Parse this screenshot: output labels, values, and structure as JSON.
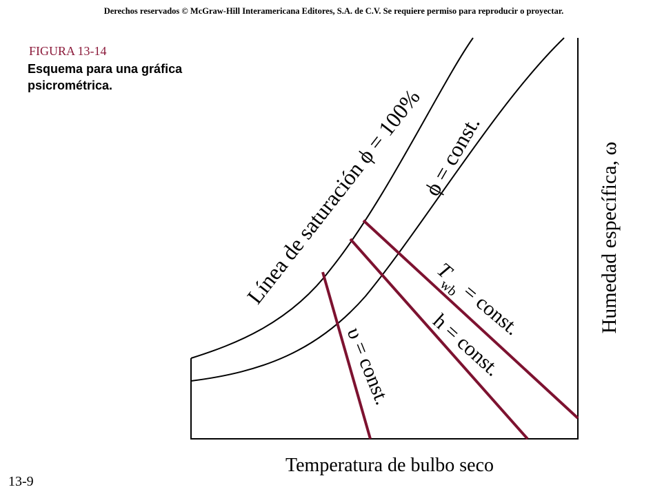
{
  "header": {
    "copyright": "Derechos reservados © McGraw-Hill Interamericana Editores, S.A. de C.V. Se requiere permiso para reproducir o proyectar.",
    "figure": "FIGURA 13-14",
    "caption": "Esquema para una gráfica psicrométrica."
  },
  "diagram": {
    "saturation_label": "Línea de saturación ϕ = 100%",
    "phi_label": "ϕ = const.",
    "twb_label": {
      "symbol": "T",
      "subscript": "wb",
      "rest": "= const."
    },
    "h_label": "h = const.",
    "v_label": "υ = const.",
    "y_label": "Humedad específica, ω",
    "x_label": "Temperatura de bulbo seco"
  },
  "footer": {
    "page": "13-9"
  }
}
